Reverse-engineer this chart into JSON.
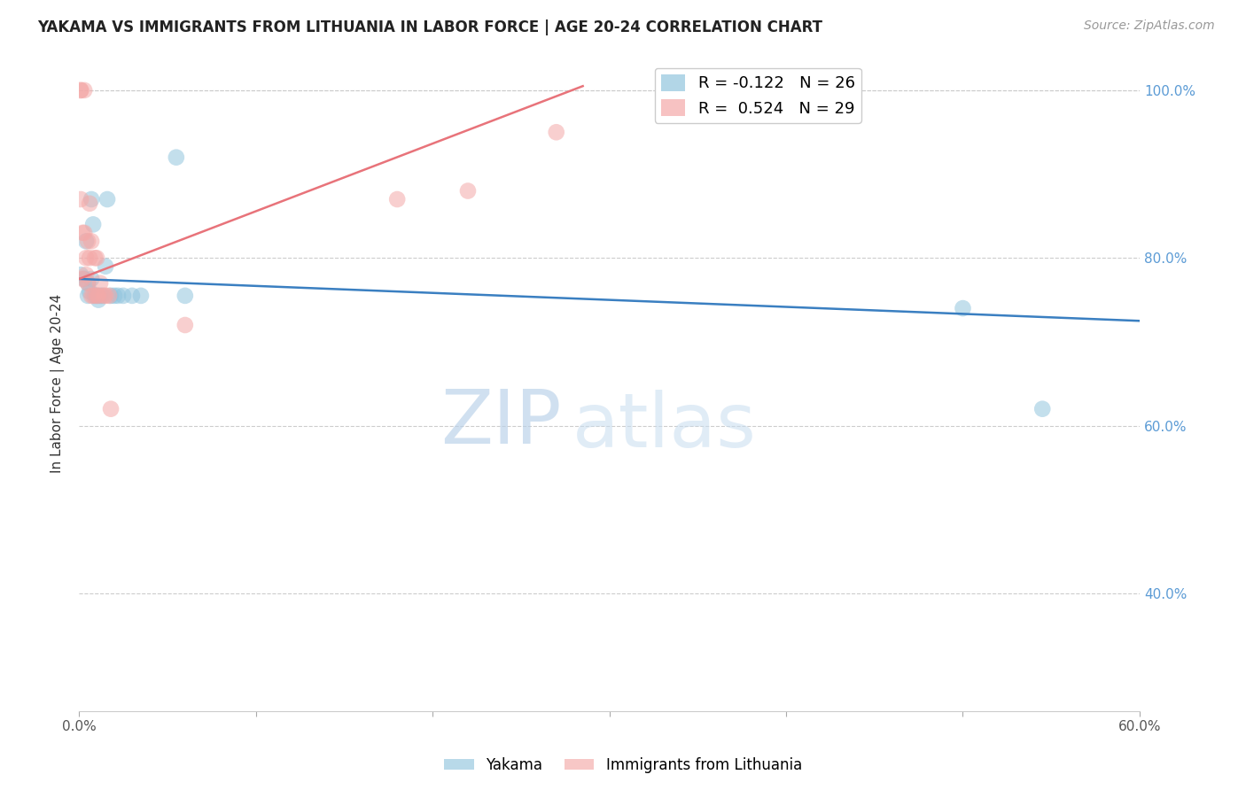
{
  "title": "YAKAMA VS IMMIGRANTS FROM LITHUANIA IN LABOR FORCE | AGE 20-24 CORRELATION CHART",
  "source": "Source: ZipAtlas.com",
  "ylabel": "In Labor Force | Age 20-24",
  "xlim": [
    0.0,
    0.6
  ],
  "ylim": [
    0.26,
    1.04
  ],
  "x_ticks": [
    0.0,
    0.1,
    0.2,
    0.3,
    0.4,
    0.5,
    0.6
  ],
  "x_tick_labels": [
    "0.0%",
    "",
    "",
    "",
    "",
    "",
    "60.0%"
  ],
  "y_ticks": [
    0.4,
    0.6,
    0.8,
    1.0
  ],
  "y_tick_labels": [
    "40.0%",
    "60.0%",
    "80.0%",
    "100.0%"
  ],
  "watermark_zip": "ZIP",
  "watermark_atlas": "atlas",
  "legend_blue_r": "R = -0.122",
  "legend_blue_n": "N = 26",
  "legend_pink_r": "R =  0.524",
  "legend_pink_n": "N = 29",
  "blue_color": "#92c5de",
  "pink_color": "#f4a9a8",
  "blue_line_color": "#3a7fc1",
  "pink_line_color": "#e8737a",
  "yakama_x": [
    0.001,
    0.003,
    0.004,
    0.005,
    0.005,
    0.006,
    0.007,
    0.007,
    0.008,
    0.009,
    0.01,
    0.011,
    0.012,
    0.013,
    0.015,
    0.016,
    0.018,
    0.02,
    0.022,
    0.025,
    0.03,
    0.035,
    0.055,
    0.06,
    0.5,
    0.545
  ],
  "yakama_y": [
    0.78,
    0.775,
    0.82,
    0.77,
    0.755,
    0.76,
    0.775,
    0.87,
    0.84,
    0.755,
    0.755,
    0.75,
    0.755,
    0.755,
    0.79,
    0.87,
    0.755,
    0.755,
    0.755,
    0.755,
    0.755,
    0.755,
    0.92,
    0.755,
    0.74,
    0.62
  ],
  "lithuania_x": [
    0.001,
    0.001,
    0.001,
    0.002,
    0.002,
    0.003,
    0.003,
    0.004,
    0.004,
    0.005,
    0.005,
    0.006,
    0.006,
    0.007,
    0.007,
    0.008,
    0.009,
    0.01,
    0.01,
    0.011,
    0.012,
    0.014,
    0.015,
    0.017,
    0.018,
    0.06,
    0.18,
    0.22,
    0.27
  ],
  "lithuania_y": [
    1.0,
    1.0,
    0.87,
    0.83,
    0.775,
    1.0,
    0.83,
    0.8,
    0.78,
    0.82,
    0.77,
    0.865,
    0.8,
    0.82,
    0.755,
    0.755,
    0.8,
    0.8,
    0.755,
    0.755,
    0.77,
    0.755,
    0.755,
    0.755,
    0.62,
    0.72,
    0.87,
    0.88,
    0.95
  ],
  "blue_trend_x": [
    0.0,
    0.6
  ],
  "blue_trend_y": [
    0.775,
    0.725
  ],
  "pink_trend_x": [
    0.0,
    0.285
  ],
  "pink_trend_y": [
    0.775,
    1.005
  ]
}
